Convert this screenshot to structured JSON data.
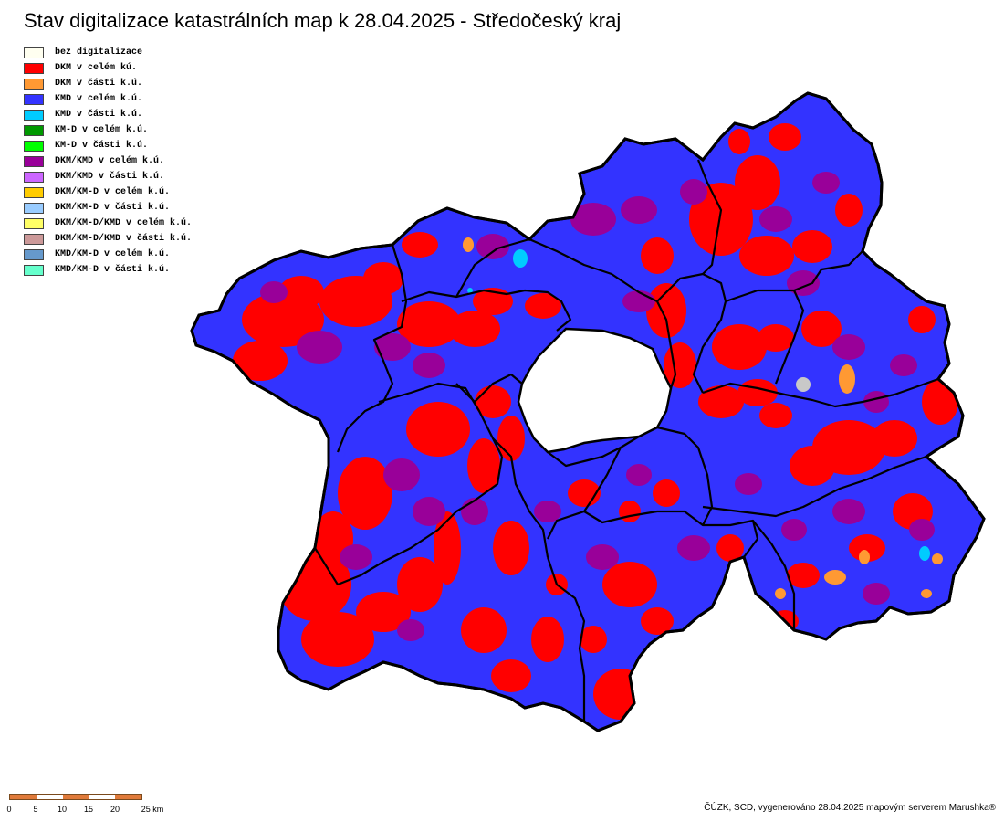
{
  "title": "Stav digitalizace katastrálních map k 28.04.2025 - Středočeský kraj",
  "legend": [
    {
      "label": "bez digitalizace",
      "color": "#fffff0"
    },
    {
      "label": "DKM v celém kú.",
      "color": "#ff0000"
    },
    {
      "label": "DKM v části k.ú.",
      "color": "#ff9933"
    },
    {
      "label": "KMD v celém k.ú.",
      "color": "#3333ff"
    },
    {
      "label": "KMD v části k.ú.",
      "color": "#00ccff"
    },
    {
      "label": "KM-D v celém k.ú.",
      "color": "#009900"
    },
    {
      "label": "KM-D v části k.ú.",
      "color": "#00ff00"
    },
    {
      "label": "DKM/KMD v celém k.ú.",
      "color": "#990099"
    },
    {
      "label": "DKM/KMD v části k.ú.",
      "color": "#cc66ff"
    },
    {
      "label": "DKM/KM-D v celém k.ú.",
      "color": "#ffcc00"
    },
    {
      "label": "DKM/KM-D v části k.ú.",
      "color": "#99ccff"
    },
    {
      "label": "DKM/KM-D/KMD v celém k.ú.",
      "color": "#ffff66"
    },
    {
      "label": "DKM/KM-D/KMD v části k.ú.",
      "color": "#cc9999"
    },
    {
      "label": "KMD/KM-D v celém k.ú.",
      "color": "#6699cc"
    },
    {
      "label": "KMD/KM-D v části k.ú.",
      "color": "#66ffcc"
    }
  ],
  "map": {
    "region_name": "Středočeský kraj",
    "base_color": "#3333ff",
    "district_border_color": "#000000",
    "hole_color": "#ffffff",
    "patches": [
      {
        "category": "DKM v celém kú.",
        "color": "#ff0000"
      },
      {
        "category": "DKM/KMD v celém k.ú.",
        "color": "#990099"
      },
      {
        "category": "DKM v části k.ú.",
        "color": "#ff9933"
      },
      {
        "category": "KMD v části k.ú.",
        "color": "#00ccff"
      }
    ]
  },
  "scale": {
    "labels": [
      "0",
      "5",
      "10",
      "15",
      "20",
      "25 km"
    ],
    "colors": [
      "#e07a3a",
      "#ffffff",
      "#e07a3a",
      "#ffffff",
      "#e07a3a"
    ]
  },
  "credits": "ČÚZK, SCD, vygenerováno 28.04.2025 mapovým serverem Marushka®"
}
